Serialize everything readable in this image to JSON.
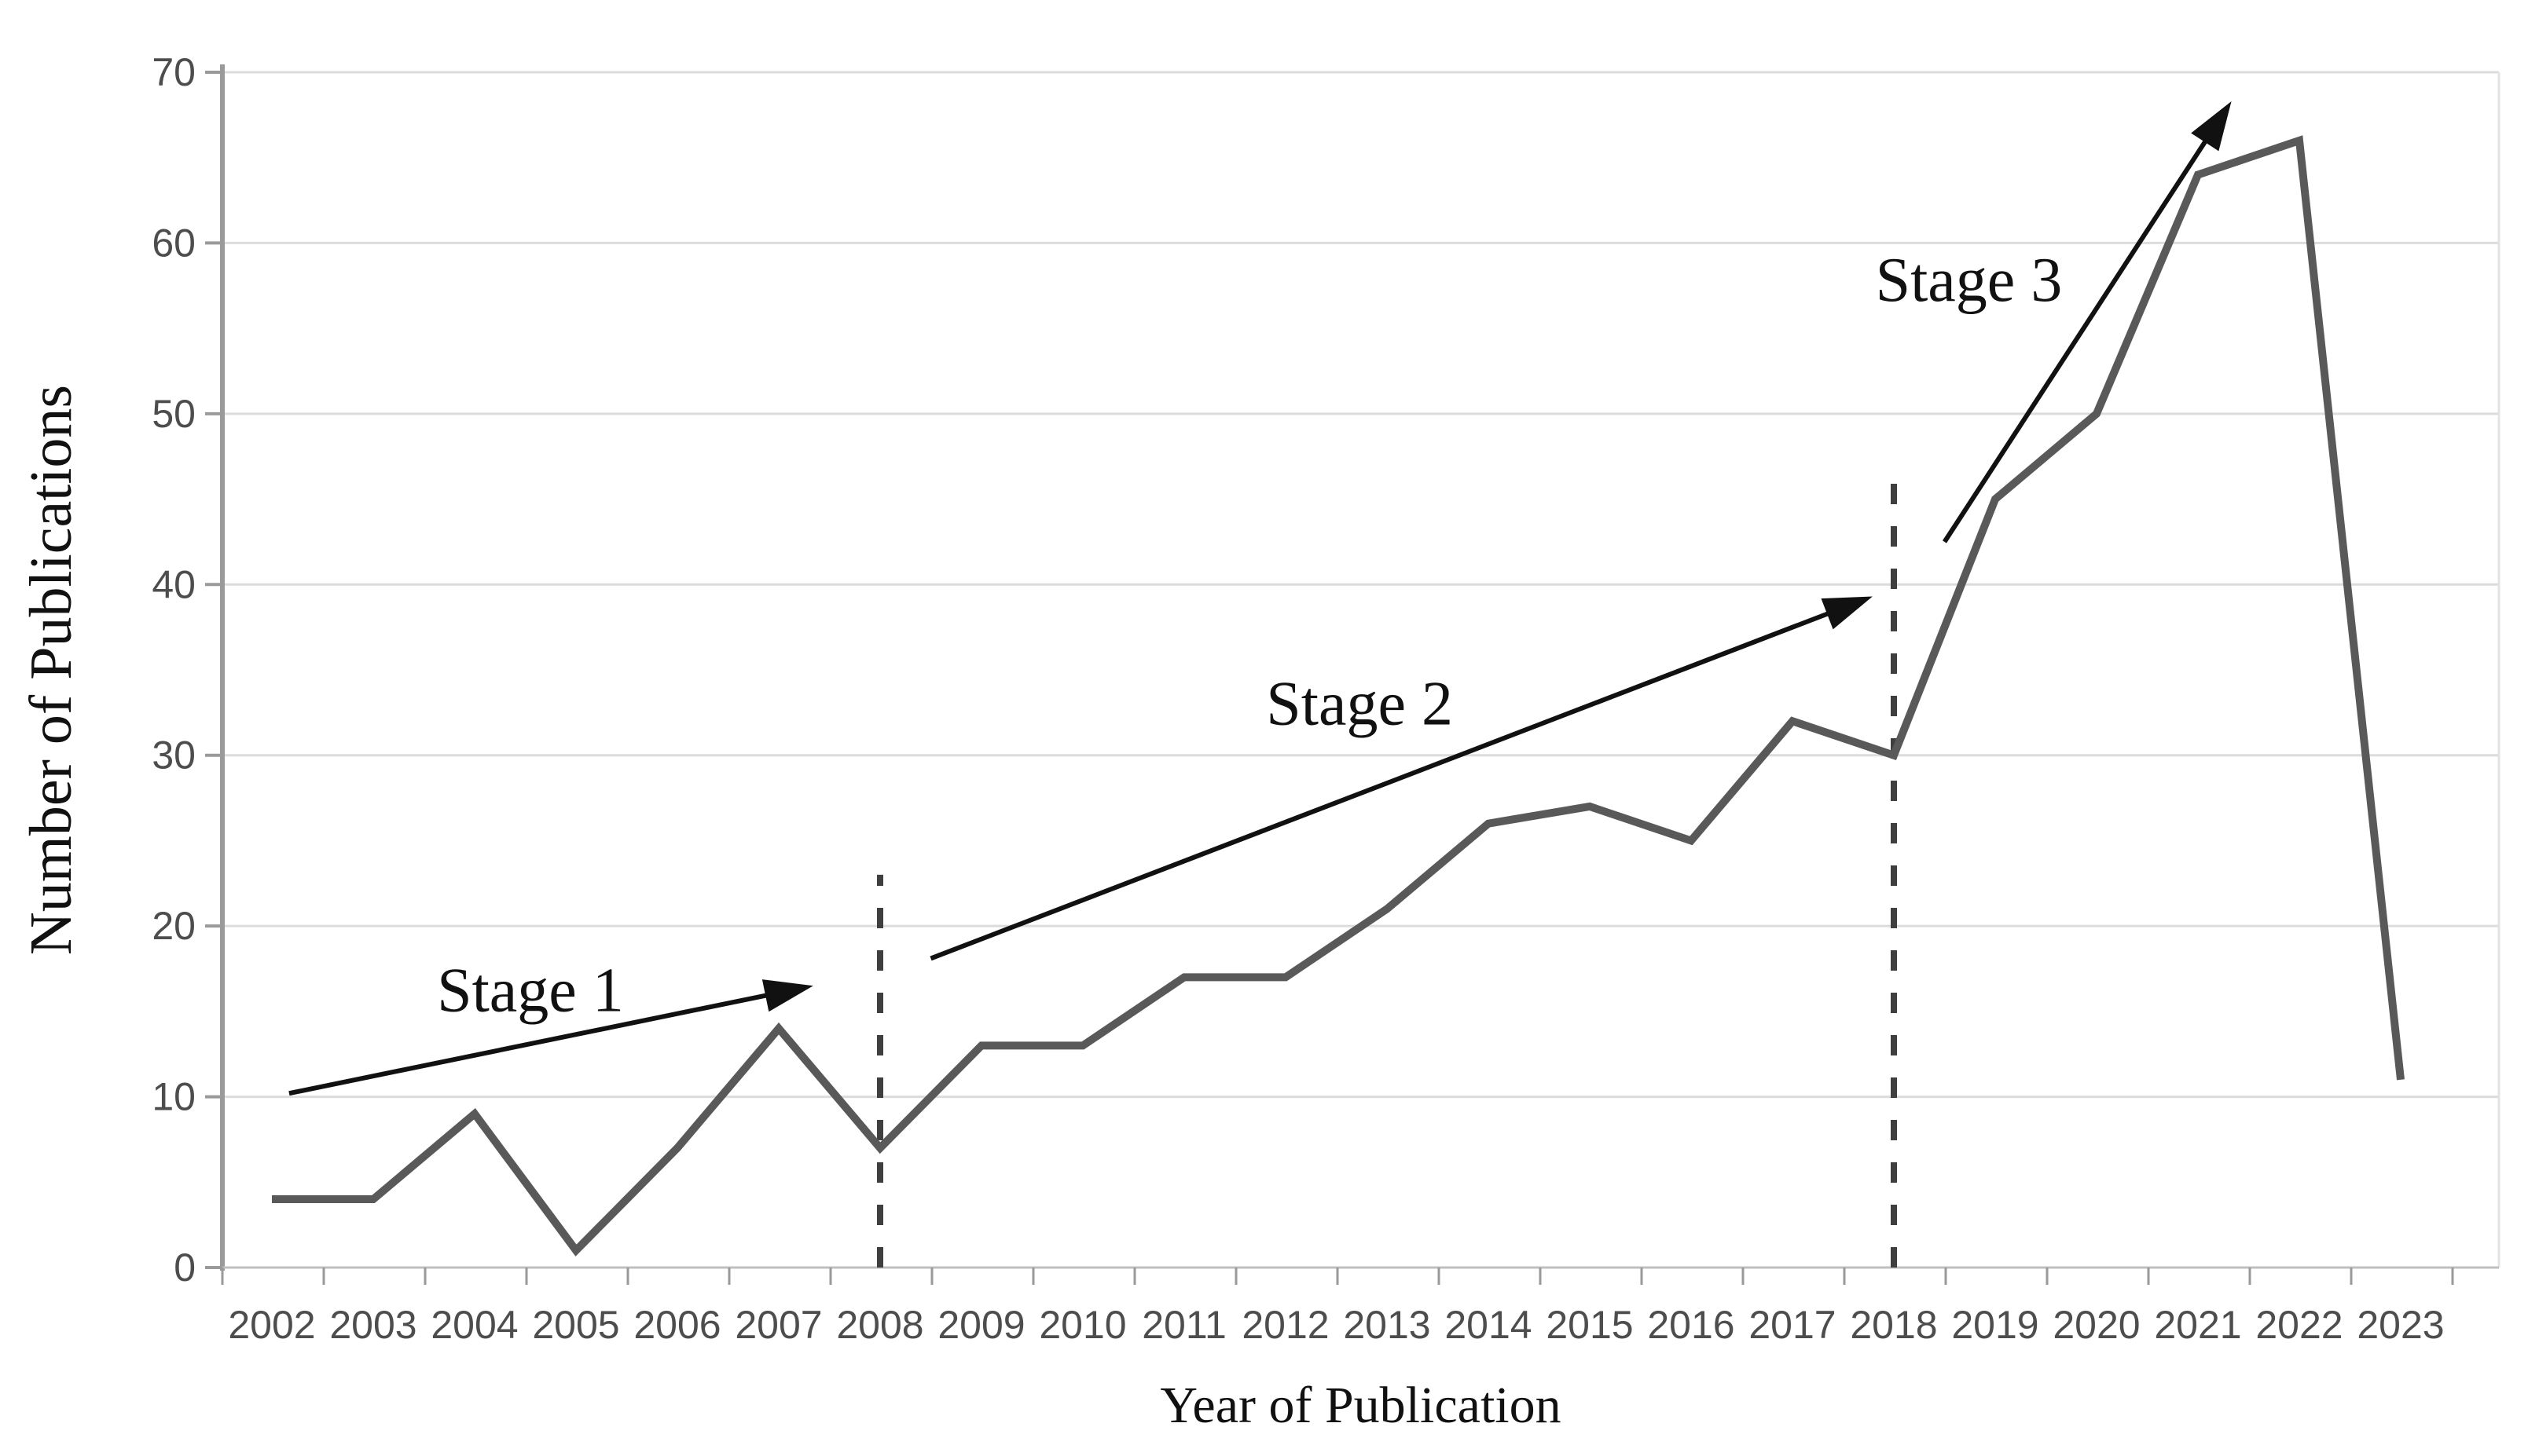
{
  "chart_data": {
    "type": "line",
    "title": "",
    "xlabel": "Year of Publication",
    "ylabel": "Number of Publications",
    "categories": [
      "2002",
      "2003",
      "2004",
      "2005",
      "2006",
      "2007",
      "2008",
      "2009",
      "2010",
      "2011",
      "2012",
      "2013",
      "2014",
      "2015",
      "2016",
      "2017",
      "2018",
      "2019",
      "2020",
      "2021",
      "2022",
      "2023"
    ],
    "values": [
      4,
      4,
      9,
      1,
      7,
      14,
      7,
      13,
      13,
      17,
      17,
      21,
      26,
      27,
      25,
      32,
      30,
      45,
      50,
      64,
      66,
      11
    ],
    "ylim": [
      0,
      70
    ],
    "yticks": [
      0,
      10,
      20,
      30,
      40,
      50,
      60,
      70
    ],
    "grid": "horizontal-light",
    "legend": "none",
    "line_color": "#595959",
    "annotation_color": "#111111",
    "dashed_line_color": "#3f3f3f",
    "annotations": {
      "dashed_lines": [
        {
          "year": 2008,
          "from_value": 0,
          "to_value": 23
        },
        {
          "year": 2018,
          "from_value": 0,
          "to_value": 46
        }
      ],
      "stages": [
        {
          "label": "Stage 1",
          "label_year": 2004.55,
          "label_value": 16.3,
          "arrow": {
            "x1": 2002.17,
            "y1": 10.2,
            "x2": 2007.34,
            "y2": 16.5
          }
        },
        {
          "label": "Stage 2",
          "label_year": 2012.73,
          "label_value": 33.1,
          "arrow": {
            "x1": 2008.5,
            "y1": 18.1,
            "x2": 2017.79,
            "y2": 39.3
          }
        },
        {
          "label": "Stage 3",
          "label_year": 2018.74,
          "label_value": 57.9,
          "arrow": {
            "x1": 2018.5,
            "y1": 42.5,
            "x2": 2021.33,
            "y2": 68.3
          }
        }
      ]
    }
  }
}
